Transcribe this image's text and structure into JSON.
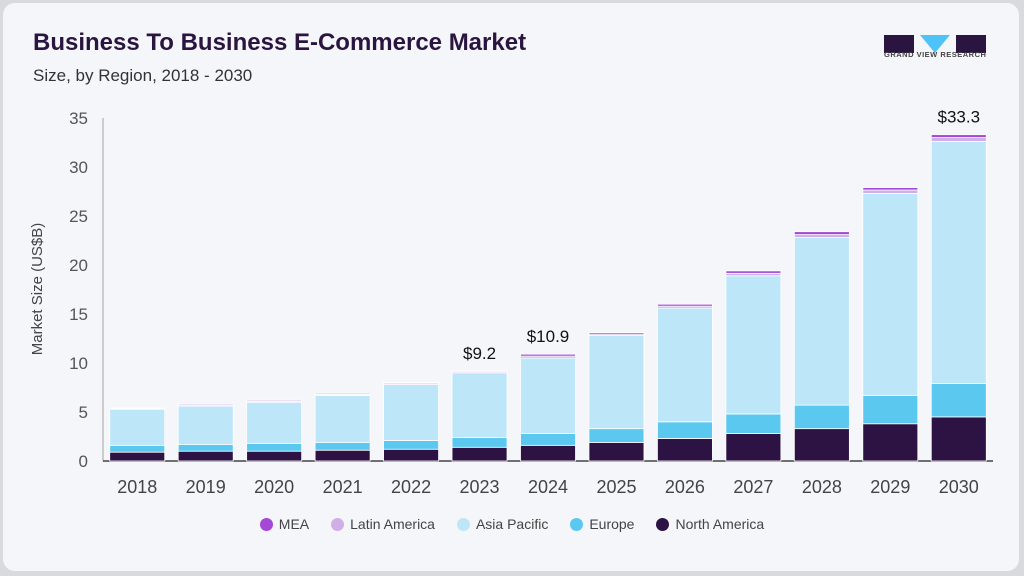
{
  "header": {
    "title": "Business To Business E-Commerce Market",
    "subtitle": "Size, by Region, 2018 - 2030"
  },
  "logo": {
    "text": "GRAND VIEW RESEARCH",
    "colors": {
      "dark": "#2a1540",
      "accent": "#4fc3f7"
    }
  },
  "chart_data": {
    "type": "stacked-bar",
    "title": "Business To Business E-Commerce Market",
    "subtitle": "Size, by Region, 2018 - 2030",
    "xlabel": "",
    "ylabel": "Market Size (US$B)",
    "ylim": [
      0,
      35
    ],
    "yticks": [
      0,
      5,
      10,
      15,
      20,
      25,
      30,
      35
    ],
    "grid": false,
    "legend_position": "bottom",
    "categories": [
      "2018",
      "2019",
      "2020",
      "2021",
      "2022",
      "2023",
      "2024",
      "2025",
      "2026",
      "2027",
      "2028",
      "2029",
      "2030"
    ],
    "series": [
      {
        "name": "North America",
        "color": "#2d1244",
        "values": [
          0.9,
          1.0,
          1.0,
          1.1,
          1.2,
          1.4,
          1.6,
          1.9,
          2.3,
          2.8,
          3.3,
          3.8,
          4.5
        ]
      },
      {
        "name": "Europe",
        "color": "#5bc8f0",
        "values": [
          0.7,
          0.7,
          0.8,
          0.8,
          0.9,
          1.0,
          1.2,
          1.4,
          1.7,
          2.0,
          2.4,
          2.9,
          3.4
        ]
      },
      {
        "name": "Asia Pacific",
        "color": "#bde7f8",
        "values": [
          3.7,
          3.9,
          4.2,
          4.8,
          5.7,
          6.6,
          7.7,
          9.5,
          11.6,
          14.1,
          17.1,
          20.6,
          24.7
        ]
      },
      {
        "name": "Latin America",
        "color": "#d0aee8",
        "values": [
          0.06,
          0.1,
          0.1,
          0.1,
          0.1,
          0.11,
          0.2,
          0.15,
          0.2,
          0.25,
          0.3,
          0.35,
          0.4
        ]
      },
      {
        "name": "MEA",
        "color": "#a349d6",
        "values": [
          0.04,
          0.1,
          0.1,
          0.1,
          0.1,
          0.09,
          0.2,
          0.15,
          0.2,
          0.25,
          0.3,
          0.25,
          0.3
        ]
      }
    ],
    "annotations": [
      {
        "category": "2023",
        "label": "$9.2"
      },
      {
        "category": "2024",
        "label": "$10.9"
      },
      {
        "category": "2030",
        "label": "$33.3"
      }
    ],
    "legend_order": [
      "MEA",
      "Latin America",
      "Asia Pacific",
      "Europe",
      "North America"
    ]
  }
}
